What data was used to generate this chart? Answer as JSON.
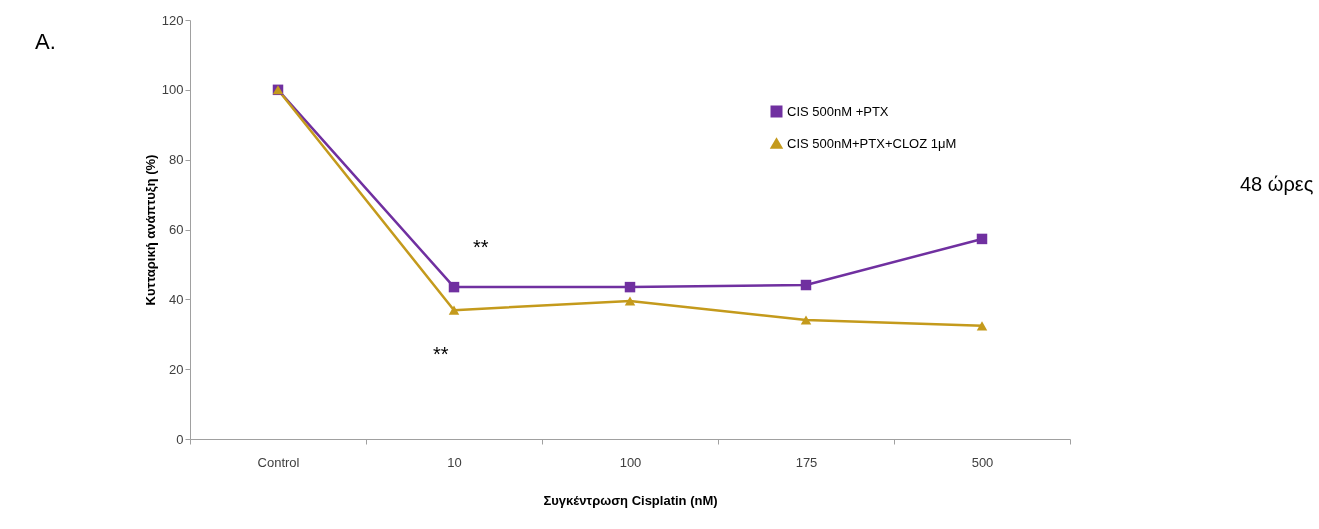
{
  "chart_data": {
    "type": "line",
    "xlabel": "Συγκέντρωση  Cisplatin (nM)",
    "ylabel": "Κυτταρική ανάπτυξη (%)",
    "categories": [
      "Control",
      "10",
      "100",
      "175",
      "500"
    ],
    "series": [
      {
        "name": "CIS 500nM +PTX",
        "color": "#7030a0",
        "marker": "square",
        "values": [
          100,
          43.5,
          43.5,
          44.1,
          57.3
        ]
      },
      {
        "name": "CIS 500nM+PTX+CLOZ 1μM",
        "color": "#c49a1c",
        "marker": "triangle",
        "values": [
          100,
          36.9,
          39.5,
          34.1,
          32.4
        ]
      }
    ],
    "ylim": [
      0,
      120
    ],
    "yticks": [
      0,
      20,
      40,
      60,
      80,
      100,
      120
    ],
    "grid": false,
    "legend": "top right",
    "annotations": [
      "A.",
      "**",
      "**",
      "48 ώρες"
    ]
  }
}
